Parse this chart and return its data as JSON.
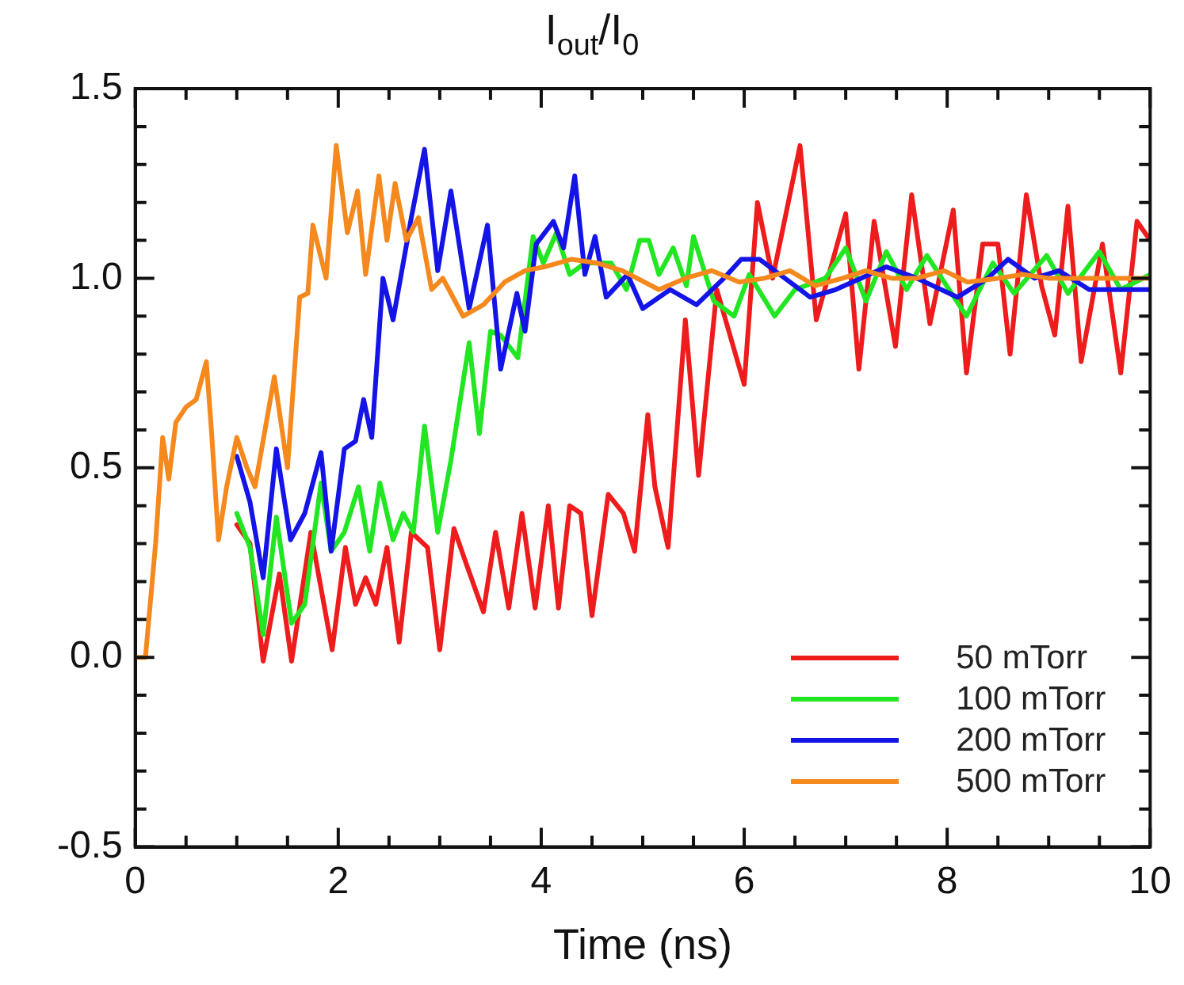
{
  "chart_data": {
    "type": "line",
    "title": "I$_{out}$/I$_{0}$",
    "xlabel": "Time (ns)",
    "xlim": [
      0,
      10
    ],
    "xticks": [
      0,
      {
        "value": 0.5,
        "label": null
      },
      {
        "value": 1,
        "label": null
      },
      {
        "value": 1.5,
        "label": null
      },
      2,
      {
        "value": 2.5,
        "label": null
      },
      {
        "value": 3,
        "label": null
      },
      {
        "value": 3.5,
        "label": null
      },
      4,
      {
        "value": 4.5,
        "label": null
      },
      {
        "value": 5,
        "label": null
      },
      {
        "value": 5.5,
        "label": null
      },
      6,
      {
        "value": 6.5,
        "label": null
      },
      {
        "value": 7,
        "label": null
      },
      {
        "value": 7.5,
        "label": null
      },
      8,
      {
        "value": 8.5,
        "label": null
      },
      {
        "value": 9,
        "label": null
      },
      {
        "value": 9.5,
        "label": null
      },
      10
    ],
    "ylim": [
      -0.5,
      1.5
    ],
    "yticks": [
      -0.5,
      {
        "value": -0.4,
        "label": null
      },
      {
        "value": -0.3,
        "label": null
      },
      {
        "value": -0.2,
        "label": null
      },
      {
        "value": -0.1,
        "label": null
      },
      {
        "value": 0,
        "label": "0.0"
      },
      {
        "value": 0.1,
        "label": null
      },
      {
        "value": 0.2,
        "label": null
      },
      {
        "value": 0.3,
        "label": null
      },
      {
        "value": 0.4,
        "label": null
      },
      0.5,
      {
        "value": 0.6,
        "label": null
      },
      {
        "value": 0.7,
        "label": null
      },
      {
        "value": 0.8,
        "label": null
      },
      {
        "value": 0.9,
        "label": null
      },
      {
        "value": 1,
        "label": "1.0"
      },
      {
        "value": 1.1,
        "label": null
      },
      {
        "value": 1.2,
        "label": null
      },
      {
        "value": 1.3,
        "label": null
      },
      {
        "value": 1.4,
        "label": null
      },
      1.5
    ],
    "grid": false,
    "legend": "bottom right",
    "marker": "none",
    "line_style": "solid",
    "series": [
      {
        "name": "50 mTorr",
        "color": "#ee1c1c",
        "x": [
          1.0,
          1.13,
          1.26,
          1.42,
          1.54,
          1.73,
          1.94,
          2.07,
          2.17,
          2.27,
          2.37,
          2.48,
          2.6,
          2.72,
          2.88,
          3.0,
          3.14,
          3.27,
          3.43,
          3.55,
          3.68,
          3.81,
          3.94,
          4.07,
          4.17,
          4.28,
          4.39,
          4.5,
          4.66,
          4.81,
          4.92,
          5.05,
          5.12,
          5.25,
          5.42,
          5.55,
          5.73,
          6.0,
          6.13,
          6.28,
          6.55,
          6.71,
          7.0,
          7.13,
          7.28,
          7.49,
          7.65,
          7.83,
          8.06,
          8.19,
          8.35,
          8.5,
          8.62,
          8.78,
          8.93,
          9.06,
          9.19,
          9.32,
          9.53,
          9.71,
          9.87,
          10
        ],
        "values": [
          0.35,
          0.3,
          -0.01,
          0.22,
          -0.01,
          0.33,
          0.02,
          0.29,
          0.14,
          0.21,
          0.14,
          0.29,
          0.04,
          0.33,
          0.29,
          0.02,
          0.34,
          0.24,
          0.12,
          0.33,
          0.13,
          0.38,
          0.13,
          0.4,
          0.13,
          0.4,
          0.38,
          0.11,
          0.43,
          0.38,
          0.28,
          0.64,
          0.45,
          0.29,
          0.89,
          0.48,
          0.97,
          0.72,
          1.2,
          1.0,
          1.35,
          0.89,
          1.17,
          0.76,
          1.15,
          0.82,
          1.22,
          0.88,
          1.18,
          0.75,
          1.09,
          1.09,
          0.8,
          1.22,
          0.98,
          0.85,
          1.19,
          0.78,
          1.09,
          0.75,
          1.15,
          1.1
        ]
      },
      {
        "name": "100 mTorr",
        "color": "#22e622",
        "x": [
          1.0,
          1.13,
          1.26,
          1.39,
          1.54,
          1.67,
          1.83,
          1.93,
          2.06,
          2.2,
          2.31,
          2.41,
          2.54,
          2.64,
          2.74,
          2.85,
          2.98,
          3.11,
          3.29,
          3.39,
          3.5,
          3.6,
          3.77,
          3.92,
          4.02,
          4.15,
          4.28,
          4.43,
          4.69,
          4.84,
          4.97,
          5.06,
          5.16,
          5.3,
          5.43,
          5.5,
          5.7,
          5.9,
          6.05,
          6.3,
          6.5,
          6.8,
          7.0,
          7.2,
          7.4,
          7.6,
          7.8,
          8.19,
          8.45,
          8.66,
          8.98,
          9.19,
          9.5,
          9.71,
          10
        ],
        "values": [
          0.38,
          0.29,
          0.06,
          0.37,
          0.09,
          0.14,
          0.46,
          0.28,
          0.33,
          0.45,
          0.28,
          0.46,
          0.31,
          0.38,
          0.33,
          0.61,
          0.33,
          0.52,
          0.83,
          0.59,
          0.86,
          0.85,
          0.79,
          1.11,
          1.04,
          1.12,
          1.01,
          1.04,
          1.04,
          0.97,
          1.1,
          1.1,
          1.01,
          1.08,
          0.98,
          1.11,
          0.94,
          0.9,
          1.01,
          0.9,
          0.97,
          1.0,
          1.08,
          0.94,
          1.07,
          0.97,
          1.06,
          0.9,
          1.04,
          0.96,
          1.06,
          0.96,
          1.07,
          0.97,
          1.01
        ]
      },
      {
        "name": "200 mTorr",
        "color": "#1414e6",
        "x": [
          1.0,
          1.13,
          1.26,
          1.39,
          1.53,
          1.67,
          1.83,
          1.93,
          2.06,
          2.17,
          2.25,
          2.33,
          2.44,
          2.54,
          2.72,
          2.85,
          2.98,
          3.11,
          3.29,
          3.47,
          3.6,
          3.76,
          3.84,
          3.95,
          4.12,
          4.22,
          4.33,
          4.43,
          4.53,
          4.64,
          4.85,
          5.0,
          5.27,
          5.53,
          5.8,
          5.97,
          6.15,
          6.4,
          6.65,
          6.9,
          7.15,
          7.4,
          7.7,
          8.1,
          8.4,
          8.6,
          8.86,
          9.1,
          9.4,
          10
        ],
        "values": [
          0.53,
          0.41,
          0.21,
          0.55,
          0.31,
          0.38,
          0.54,
          0.28,
          0.55,
          0.57,
          0.68,
          0.58,
          1.0,
          0.89,
          1.16,
          1.34,
          1.02,
          1.23,
          0.92,
          1.14,
          0.76,
          0.96,
          0.86,
          1.09,
          1.15,
          1.08,
          1.27,
          1.01,
          1.11,
          0.95,
          1.01,
          0.92,
          0.97,
          0.93,
          1.0,
          1.05,
          1.05,
          1.0,
          0.95,
          0.97,
          1.0,
          1.03,
          1.0,
          0.95,
          1.0,
          1.05,
          1.0,
          1.02,
          0.97,
          0.97
        ]
      },
      {
        "name": "500 mTorr",
        "color": "#f5891e",
        "x": [
          0,
          0.1,
          0.2,
          0.27,
          0.33,
          0.4,
          0.5,
          0.6,
          0.7,
          0.75,
          0.82,
          0.9,
          1.0,
          1.1,
          1.18,
          1.37,
          1.5,
          1.62,
          1.7,
          1.75,
          1.88,
          1.98,
          2.09,
          2.19,
          2.27,
          2.4,
          2.48,
          2.56,
          2.67,
          2.79,
          2.92,
          3.03,
          3.23,
          3.43,
          3.64,
          3.84,
          4.03,
          4.3,
          4.55,
          4.8,
          5.16,
          5.42,
          5.68,
          5.95,
          6.2,
          6.45,
          6.7,
          6.97,
          7.2,
          7.45,
          7.7,
          7.97,
          8.2,
          8.5,
          8.75,
          9.0,
          9.3,
          9.55,
          10
        ],
        "values": [
          0,
          0,
          0.3,
          0.58,
          0.47,
          0.62,
          0.66,
          0.68,
          0.78,
          0.6,
          0.31,
          0.45,
          0.58,
          0.5,
          0.45,
          0.74,
          0.5,
          0.95,
          0.96,
          1.14,
          1.0,
          1.35,
          1.12,
          1.23,
          1.01,
          1.27,
          1.1,
          1.25,
          1.1,
          1.16,
          0.97,
          1.0,
          0.9,
          0.93,
          0.99,
          1.02,
          1.03,
          1.05,
          1.04,
          1.02,
          0.97,
          1.0,
          1.02,
          0.99,
          1.0,
          1.02,
          0.98,
          1.0,
          1.02,
          1.0,
          1.0,
          1.02,
          0.99,
          1.0,
          1.01,
          1.0,
          1.0,
          1.0,
          1.0
        ]
      }
    ]
  }
}
